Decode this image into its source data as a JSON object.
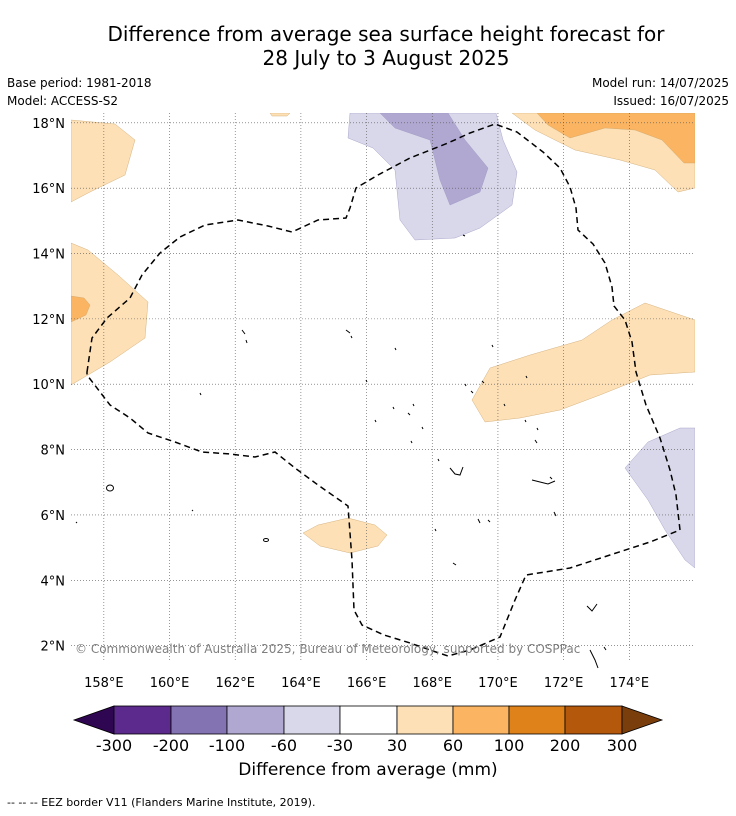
{
  "title_line1": "Difference from average sea surface height forecast for",
  "title_line2": "28 July to 3 August 2025",
  "meta": {
    "base_period": "Base period: 1981-2018",
    "model": "Model: ACCESS-S2",
    "model_run": "Model run: 14/07/2025",
    "issued": "Issued: 16/07/2025"
  },
  "map": {
    "lon_range": [
      157.0,
      176.0
    ],
    "lat_range": [
      1.5,
      18.3
    ],
    "lon_ticks": [
      "158°E",
      "160°E",
      "162°E",
      "164°E",
      "166°E",
      "168°E",
      "170°E",
      "172°E",
      "174°E"
    ],
    "lat_ticks": [
      "2°N",
      "4°N",
      "6°N",
      "8°N",
      "10°N",
      "12°N",
      "14°N",
      "16°N",
      "18°N"
    ],
    "grid": true,
    "copyright": "© Commonwealth of Australia 2025, Bureau of Meteorology, supported by COSPPac",
    "colors": {
      "neg200_300": "#5b2a8c",
      "neg100_200": "#8473b3",
      "neg60_100": "#b0a8d1",
      "neg30_60": "#d8d8ea",
      "neu": "#ffffff",
      "pos30_60": "#fde0b6",
      "pos60_100": "#fbb461",
      "pos100_200": "#e0821a",
      "pos200_300": "#b4580b",
      "min_arrow": "#2e0651",
      "max_arrow": "#7a3e0c"
    }
  },
  "colorbar": {
    "ticks": [
      "-300",
      "-200",
      "-100",
      "-60",
      "-30",
      "30",
      "60",
      "100",
      "200",
      "300"
    ],
    "label": "Difference from average (mm)"
  },
  "footnote": "--  --  -- EEZ border V11 (Flanders Marine Institute, 2019)."
}
